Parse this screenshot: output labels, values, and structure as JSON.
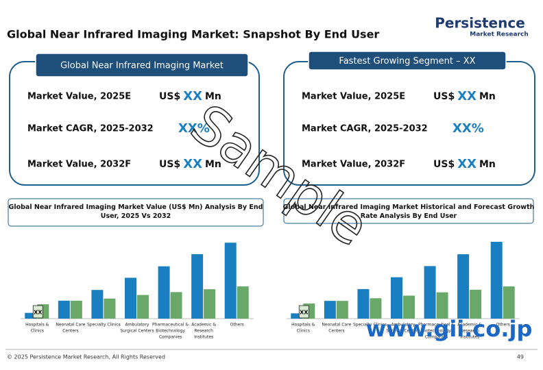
{
  "header": {
    "title": "Global Near Infrared Imaging Market: Snapshot By End User",
    "logo_name": "Persistence",
    "logo_sub": "Market Research"
  },
  "panels": [
    {
      "title": "Global Near Infrared Imaging Market",
      "rows": [
        {
          "label": "Market Value, 2025E",
          "prefix": "US$",
          "value": "XX",
          "unit": "Mn"
        },
        {
          "label": "Market CAGR, 2025-2032",
          "value": "XX%"
        },
        {
          "label": "Market Value, 2032F",
          "prefix": "US$",
          "value": "XX",
          "unit": "Mn"
        }
      ]
    },
    {
      "title": "Fastest Growing Segment – XX",
      "rows": [
        {
          "label": "Market Value, 2025E",
          "prefix": "US$",
          "value": "XX",
          "unit": "Mn"
        },
        {
          "label": "Market CAGR, 2025-2032",
          "value": "XX%"
        },
        {
          "label": "Market Value, 2032F",
          "prefix": "US$",
          "value": "XX",
          "unit": "Mn"
        }
      ]
    }
  ],
  "chart_data": [
    {
      "type": "bar",
      "title": "Global Near Infrared Imaging Market Value (US$ Mn) Analysis By End User, 2025 Vs 2032",
      "categories": [
        [
          "Hospitals &",
          "Clinics"
        ],
        [
          "Neonatal Care",
          "Centers"
        ],
        [
          "Specialty Clinics"
        ],
        [
          "Ambulatory",
          "Surgical Centers"
        ],
        [
          "Pharmaceutical &",
          "Biotechnology",
          "Companies"
        ],
        [
          "Academic &",
          "Research",
          "Institutes"
        ],
        [
          "Others"
        ]
      ],
      "series": [
        {
          "color": "#1a7fc1",
          "values": [
            8,
            25,
            40,
            57,
            73,
            90,
            106
          ]
        },
        {
          "color": "#6aa86a",
          "values": [
            20,
            25,
            28,
            33,
            37,
            41,
            45
          ]
        }
      ],
      "ylim": [
        0,
        110
      ],
      "badge": "XX"
    },
    {
      "type": "bar",
      "title": "Global Near Infrared Imaging Market Historical and Forecast Growth Rate Analysis By End User",
      "categories": [
        [
          "Hospitals &",
          "Clinics"
        ],
        [
          "Neonatal Care",
          "Centers"
        ],
        [
          "Specialty Clinics"
        ],
        [
          "Ambulatory",
          "Surgical Centers"
        ],
        [
          "Pharmaceutical &",
          "Biotechnology",
          "Companies"
        ],
        [
          "Academic &",
          "Research",
          "Institutes"
        ],
        [
          "Others"
        ]
      ],
      "series": [
        {
          "color": "#1a7fc1",
          "values": [
            8,
            27,
            45,
            63,
            80,
            98,
            117
          ]
        },
        {
          "color": "#6aa86a",
          "values": [
            23,
            27,
            31,
            35,
            40,
            44,
            49
          ]
        }
      ],
      "ylim": [
        0,
        120
      ],
      "badge": "XX"
    }
  ],
  "watermarks": [
    "Sample",
    "www.gii.co.jp"
  ],
  "footer": {
    "copyright": "© 2025 Persistence Market Research, All Rights Reserved",
    "page": "49"
  }
}
